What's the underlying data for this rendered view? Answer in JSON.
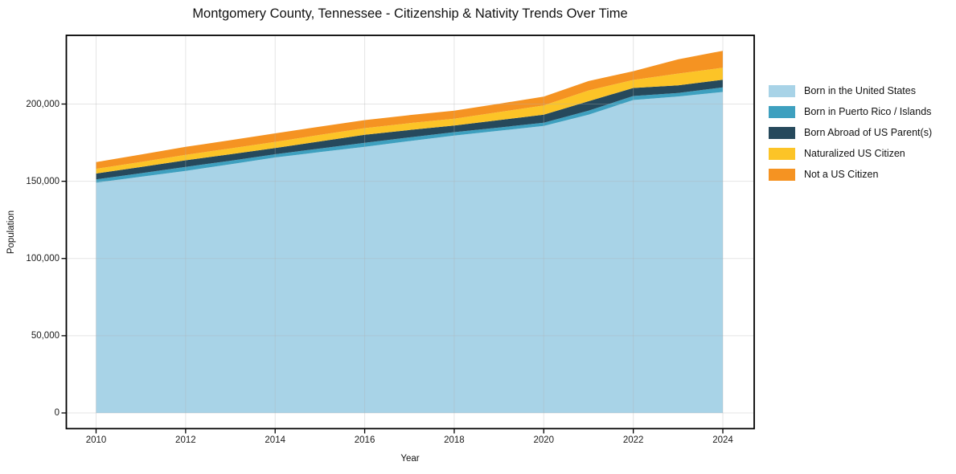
{
  "title": "Montgomery County, Tennessee - Citizenship & Nativity Trends Over Time",
  "chart_data": {
    "type": "area",
    "stacked": true,
    "title": "Montgomery County, Tennessee - Citizenship & Nativity Trends Over Time",
    "xlabel": "Year",
    "ylabel": "Population",
    "x": [
      2010,
      2011,
      2012,
      2013,
      2014,
      2015,
      2016,
      2017,
      2018,
      2019,
      2020,
      2021,
      2022,
      2023,
      2024
    ],
    "x_ticks": [
      2010,
      2012,
      2014,
      2016,
      2018,
      2020,
      2022,
      2024
    ],
    "y_ticks": [
      0,
      50000,
      100000,
      150000,
      200000
    ],
    "y_tick_labels": [
      "0",
      "50,000",
      "100,000",
      "150,000",
      "200,000"
    ],
    "xlim": [
      2009.3,
      2024.7
    ],
    "ylim": [
      -10100,
      244500
    ],
    "grid": true,
    "legend_position": "right",
    "background_color": "#ffffff",
    "grid_color": "#b0b0b0",
    "spine_color": "#000000",
    "series": [
      {
        "name": "Born in the United States",
        "color": "#a8d3e7",
        "values": [
          149100,
          152900,
          156700,
          161000,
          165400,
          168900,
          172300,
          176000,
          179600,
          182700,
          185800,
          193100,
          202600,
          204900,
          207800
        ]
      },
      {
        "name": "Born in Puerto Rico / Islands",
        "color": "#3ea0bf",
        "values": [
          2100,
          2300,
          2600,
          2300,
          2100,
          2300,
          2600,
          2400,
          2200,
          2100,
          2100,
          2600,
          2600,
          2300,
          3000
        ]
      },
      {
        "name": "Born Abroad of US Parent(s)",
        "color": "#26495c",
        "values": [
          3800,
          4000,
          4300,
          4200,
          4000,
          4600,
          5200,
          4800,
          4300,
          4800,
          5200,
          6100,
          5200,
          4900,
          4900
        ]
      },
      {
        "name": "Naturalized US Citizen",
        "color": "#fcc427",
        "values": [
          3100,
          3300,
          3500,
          3800,
          4000,
          4200,
          4300,
          4400,
          4400,
          5200,
          6000,
          7000,
          5200,
          7600,
          7800
        ]
      },
      {
        "name": "Not a US Citizen",
        "color": "#f59322",
        "values": [
          4300,
          4800,
          5200,
          5300,
          5500,
          5400,
          5200,
          5200,
          5200,
          5400,
          5700,
          6100,
          5700,
          9200,
          11000
        ]
      }
    ]
  }
}
